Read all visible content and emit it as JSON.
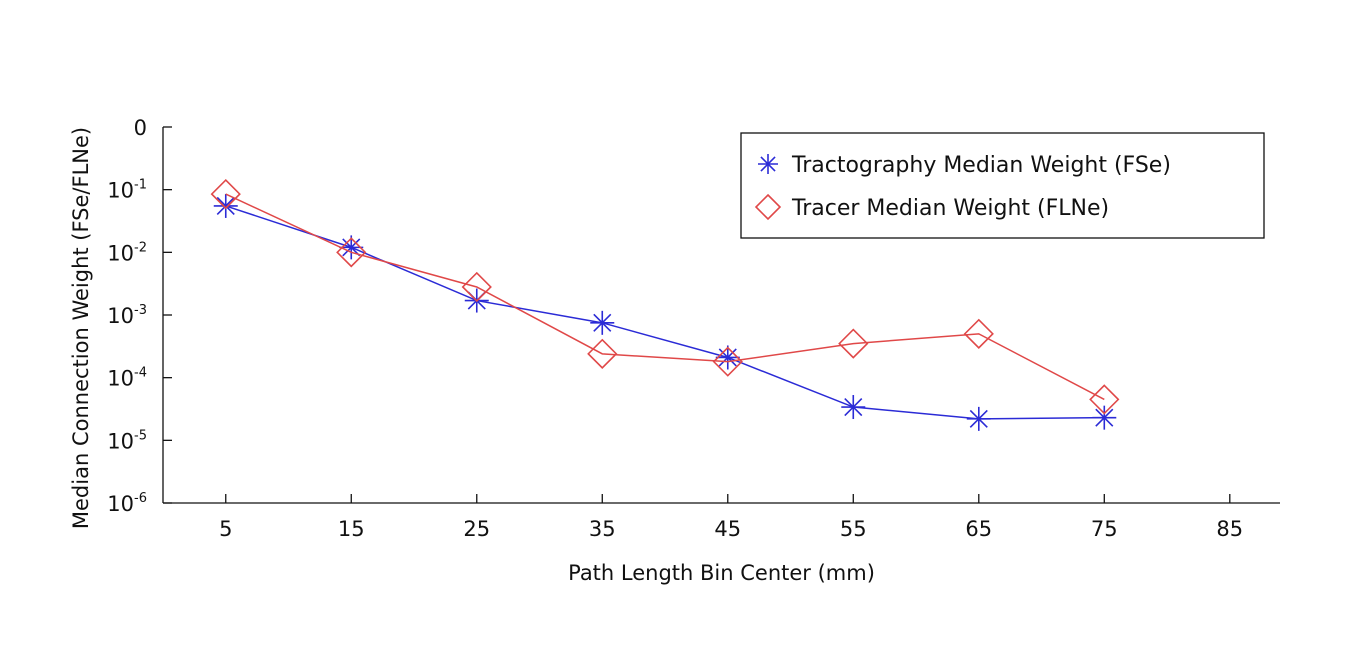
{
  "chart_data": {
    "type": "line",
    "x": [
      5,
      15,
      25,
      35,
      45,
      55,
      65,
      75
    ],
    "x_ticks": [
      5,
      15,
      25,
      35,
      45,
      55,
      65,
      75,
      85
    ],
    "xlim": [
      0,
      89
    ],
    "y_scale": "log",
    "ylim": [
      1e-06,
      1
    ],
    "y_ticks": [
      {
        "value": 1,
        "base": "0",
        "exp": ""
      },
      {
        "value": 0.1,
        "base": "10",
        "exp": "-1"
      },
      {
        "value": 0.01,
        "base": "10",
        "exp": "-2"
      },
      {
        "value": 0.001,
        "base": "10",
        "exp": "-3"
      },
      {
        "value": 0.0001,
        "base": "10",
        "exp": "-4"
      },
      {
        "value": 1e-05,
        "base": "10",
        "exp": "-5"
      },
      {
        "value": 1e-06,
        "base": "10",
        "exp": "-6"
      }
    ],
    "xlabel": "Path Length Bin Center (mm)",
    "ylabel": "Median Connection Weight (FSe/FLNe)",
    "grid": false,
    "legend_position": "top-right",
    "series": [
      {
        "name": "Tractography Median Weight (FSe)",
        "marker": "asterisk",
        "color": "#2b2bd6",
        "values": [
          0.055,
          0.012,
          0.0017,
          0.00075,
          0.00021,
          3.4e-05,
          2.2e-05,
          2.3e-05
        ]
      },
      {
        "name": "Tracer Median Weight (FLNe)",
        "marker": "diamond",
        "color": "#e04848",
        "values": [
          0.085,
          0.01,
          0.0028,
          0.00024,
          0.00018,
          0.00035,
          0.0005,
          4.5e-05
        ]
      }
    ]
  }
}
